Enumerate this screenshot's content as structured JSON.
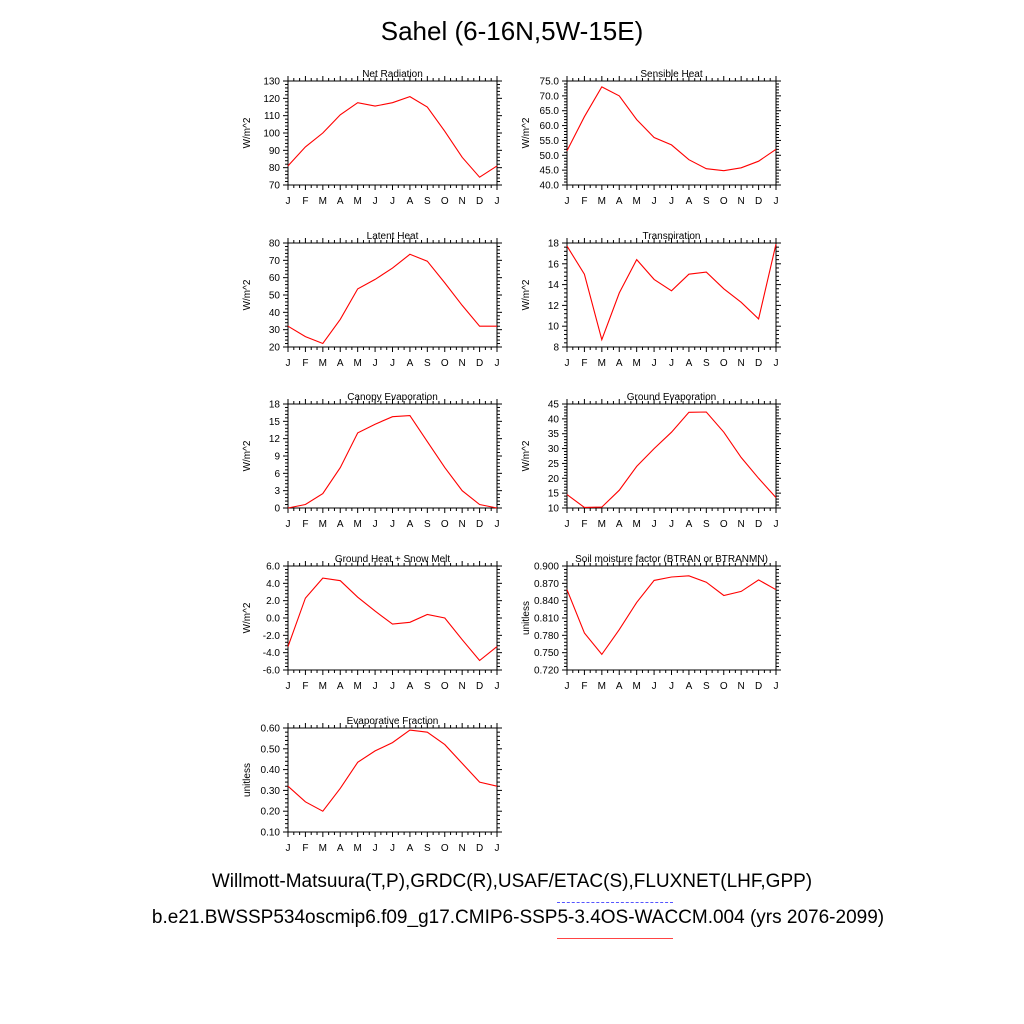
{
  "title": "Sahel (6-16N,5W-15E)",
  "months": [
    "J",
    "F",
    "M",
    "A",
    "M",
    "J",
    "J",
    "A",
    "S",
    "O",
    "N",
    "D",
    "J"
  ],
  "legend": {
    "observations": "Willmott-Matsuura(T,P),GRDC(R),USAF/ETAC(S),FLUXNET(LHF,GPP)",
    "model": "b.e21.BWSSP534oscmip6.f09_g17.CMIP6-SSP5-3.4OS-WACCM.004 (yrs 2076-2099)",
    "observation_color": "#5555ff",
    "model_color": "#ff0000"
  },
  "chart_data": [
    {
      "type": "line",
      "title": "Net Radiation",
      "ylabel": "W/m^2",
      "ylim": [
        70,
        130
      ],
      "yticks": [
        "70",
        "80",
        "90",
        "100",
        "110",
        "120",
        "130"
      ],
      "series": [
        {
          "values": [
            81,
            92,
            100,
            110.5,
            117.5,
            115.5,
            117.5,
            121,
            115,
            101,
            86,
            74.5,
            81
          ]
        }
      ]
    },
    {
      "type": "line",
      "title": "Sensible Heat",
      "ylabel": "W/m^2",
      "ylim": [
        40,
        75
      ],
      "yticks": [
        "40.0",
        "45.0",
        "50.0",
        "55.0",
        "60.0",
        "65.0",
        "70.0",
        "75.0"
      ],
      "series": [
        {
          "values": [
            51.5,
            63,
            73,
            70,
            62,
            56,
            53.5,
            48.5,
            45.5,
            44.8,
            45.8,
            48,
            52
          ]
        }
      ]
    },
    {
      "type": "line",
      "title": "Latent Heat",
      "ylabel": "W/m^2",
      "ylim": [
        20,
        80
      ],
      "yticks": [
        "20",
        "30",
        "40",
        "50",
        "60",
        "70",
        "80"
      ],
      "series": [
        {
          "values": [
            32,
            26,
            22,
            36,
            53.5,
            59,
            65.5,
            73.5,
            69.5,
            57,
            44,
            32,
            32
          ]
        }
      ]
    },
    {
      "type": "line",
      "title": "Transpiration",
      "ylabel": "W/m^2",
      "ylim": [
        8,
        18
      ],
      "yticks": [
        "8",
        "10",
        "12",
        "14",
        "16",
        "18"
      ],
      "series": [
        {
          "values": [
            17.7,
            15,
            8.7,
            13.2,
            16.4,
            14.5,
            13.4,
            15,
            15.2,
            13.6,
            12.3,
            10.7,
            17.9
          ]
        }
      ]
    },
    {
      "type": "line",
      "title": "Canopy Evaporation",
      "ylabel": "W/m^2",
      "ylim": [
        0,
        18
      ],
      "yticks": [
        "0",
        "3",
        "6",
        "9",
        "12",
        "15",
        "18"
      ],
      "series": [
        {
          "values": [
            0,
            0.6,
            2.5,
            7,
            13,
            14.5,
            15.8,
            16,
            11.5,
            7,
            3,
            0.6,
            0
          ]
        }
      ]
    },
    {
      "type": "line",
      "title": "Ground Evaporation",
      "ylabel": "W/m^2",
      "ylim": [
        10,
        45
      ],
      "yticks": [
        "10",
        "15",
        "20",
        "25",
        "30",
        "35",
        "40",
        "45"
      ],
      "series": [
        {
          "values": [
            14.5,
            10.2,
            10.3,
            16,
            24,
            30,
            35.5,
            42.2,
            42.3,
            35.5,
            27,
            20,
            13.5
          ]
        }
      ]
    },
    {
      "type": "line",
      "title": "Ground Heat + Snow Melt",
      "ylabel": "W/m^2",
      "ylim": [
        -6,
        6
      ],
      "yticks": [
        "-6.0",
        "-4.0",
        "-2.0",
        "0.0",
        "2.0",
        "4.0",
        "6.0"
      ],
      "series": [
        {
          "values": [
            -3.3,
            2.3,
            4.6,
            4.3,
            2.4,
            0.8,
            -0.7,
            -0.5,
            0.4,
            0,
            -2.5,
            -4.9,
            -3.3
          ]
        }
      ]
    },
    {
      "type": "line",
      "title": "Soil moisture factor (BTRAN or BTRANMN)",
      "ylabel": "unitless",
      "ylim": [
        0.72,
        0.9
      ],
      "yticks": [
        "0.720",
        "0.750",
        "0.780",
        "0.810",
        "0.840",
        "0.870",
        "0.900"
      ],
      "series": [
        {
          "values": [
            0.859,
            0.784,
            0.747,
            0.79,
            0.837,
            0.875,
            0.881,
            0.883,
            0.872,
            0.849,
            0.856,
            0.876,
            0.859
          ]
        }
      ]
    },
    {
      "type": "line",
      "title": "Evaporative Fraction",
      "ylabel": "unitless",
      "ylim": [
        0.1,
        0.6
      ],
      "yticks": [
        "0.10",
        "0.20",
        "0.30",
        "0.40",
        "0.50",
        "0.60"
      ],
      "series": [
        {
          "values": [
            0.32,
            0.245,
            0.2,
            0.31,
            0.435,
            0.49,
            0.53,
            0.59,
            0.58,
            0.52,
            0.43,
            0.34,
            0.32
          ]
        }
      ]
    }
  ]
}
